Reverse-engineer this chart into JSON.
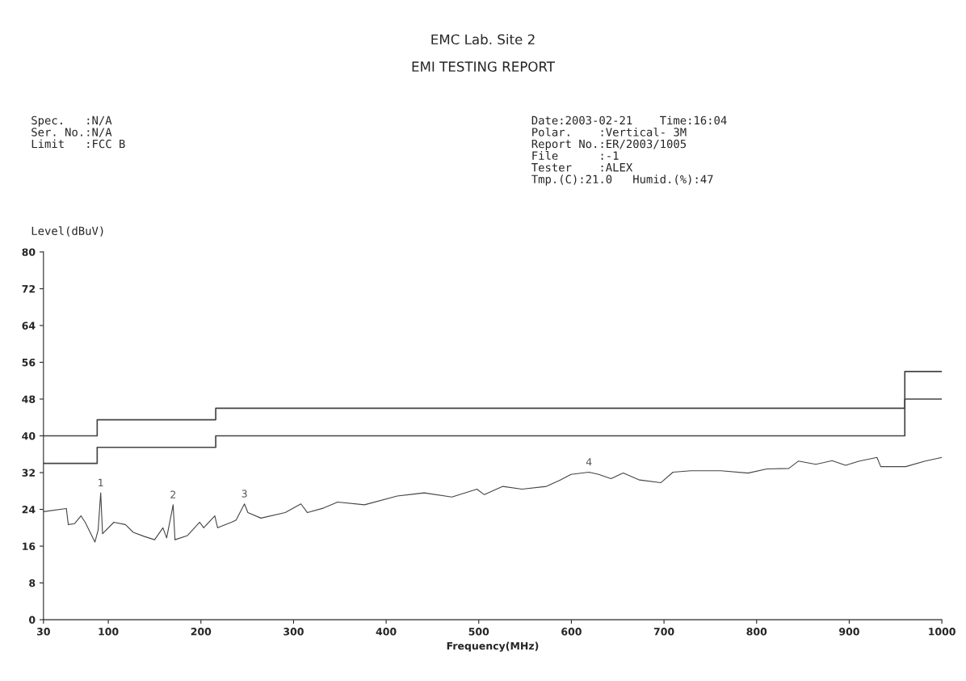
{
  "chart_data": {
    "type": "line",
    "title": "EMC Lab. Site 2",
    "subtitle": "EMI TESTING REPORT",
    "xlabel": "Frequency(MHz)",
    "ylabel": "Level(dBuV)",
    "xlim": [
      30,
      1000
    ],
    "xticks": [
      30,
      100,
      200,
      300,
      400,
      500,
      600,
      700,
      800,
      900,
      1000
    ],
    "ylim": [
      0,
      80
    ],
    "yticks": [
      0,
      8,
      16,
      24,
      32,
      40,
      48,
      56,
      64,
      72,
      80
    ],
    "series": [
      {
        "color": "#444444",
        "x": [
          30,
          54.7,
          56.8,
          63.6,
          70.5,
          75,
          85.6,
          89,
          91.8,
          93.8,
          106,
          118.5,
          127,
          139,
          150,
          159,
          163,
          170,
          172,
          185.5,
          198.7,
          203,
          215,
          218,
          233,
          238,
          247,
          250.7,
          264.8,
          291,
          308,
          315,
          332.6,
          347.6,
          376.6,
          412,
          441,
          471,
          498,
          506,
          526,
          546.7,
          573,
          588,
          599.6,
          619,
          629.5,
          642.7,
          656,
          673.6,
          696.5,
          709.7,
          729,
          761.7,
          790.7,
          811,
          834.8,
          845,
          863.9,
          881.5,
          896,
          911,
          930,
          934,
          961,
          982,
          1000
        ],
        "values": [
          23.5,
          24.2,
          20.7,
          20.9,
          22.6,
          21.2,
          16.9,
          19.5,
          27.6,
          18.7,
          21.2,
          20.7,
          19.0,
          18.1,
          17.4,
          20.0,
          17.8,
          25.0,
          17.4,
          18.3,
          21.2,
          20.0,
          22.6,
          20.0,
          21.2,
          21.7,
          25.2,
          23.3,
          22.1,
          23.3,
          25.2,
          23.3,
          24.3,
          25.6,
          25.0,
          26.9,
          27.6,
          26.7,
          28.4,
          27.2,
          29.0,
          28.4,
          29.0,
          30.4,
          31.6,
          32.1,
          31.6,
          30.7,
          31.9,
          30.4,
          29.8,
          32.1,
          32.4,
          32.4,
          31.9,
          32.8,
          32.9,
          34.5,
          33.8,
          34.6,
          33.6,
          34.5,
          35.3,
          33.3,
          33.3,
          34.5,
          35.3
        ]
      },
      {
        "type": "step",
        "color": "#444444",
        "x": [
          30,
          88,
          216,
          960,
          1000
        ],
        "values": [
          40,
          43.5,
          46,
          54,
          54
        ]
      },
      {
        "type": "step",
        "color": "#444444",
        "x": [
          30,
          88,
          216,
          960,
          1000
        ],
        "values": [
          34,
          37.5,
          40,
          48,
          48
        ]
      }
    ],
    "annotations": [
      "Spec.   :N/A\nSer. No.:N/A\nLimit   :FCC B",
      "Date:2003-02-21    Time:16:04\nPolar.    :Vertical- 3M\nReport No.:ER/2003/1005\nFile      :-1\nTester    :ALEX\nTmp.(C):21.0   Humid.(%):47",
      {
        "text": "1",
        "x": 91.8,
        "y": 27.6
      },
      {
        "text": "2",
        "x": 170,
        "y": 25.0
      },
      {
        "text": "3",
        "x": 247,
        "y": 25.2
      },
      {
        "text": "4",
        "x": 619,
        "y": 32.1
      }
    ]
  }
}
